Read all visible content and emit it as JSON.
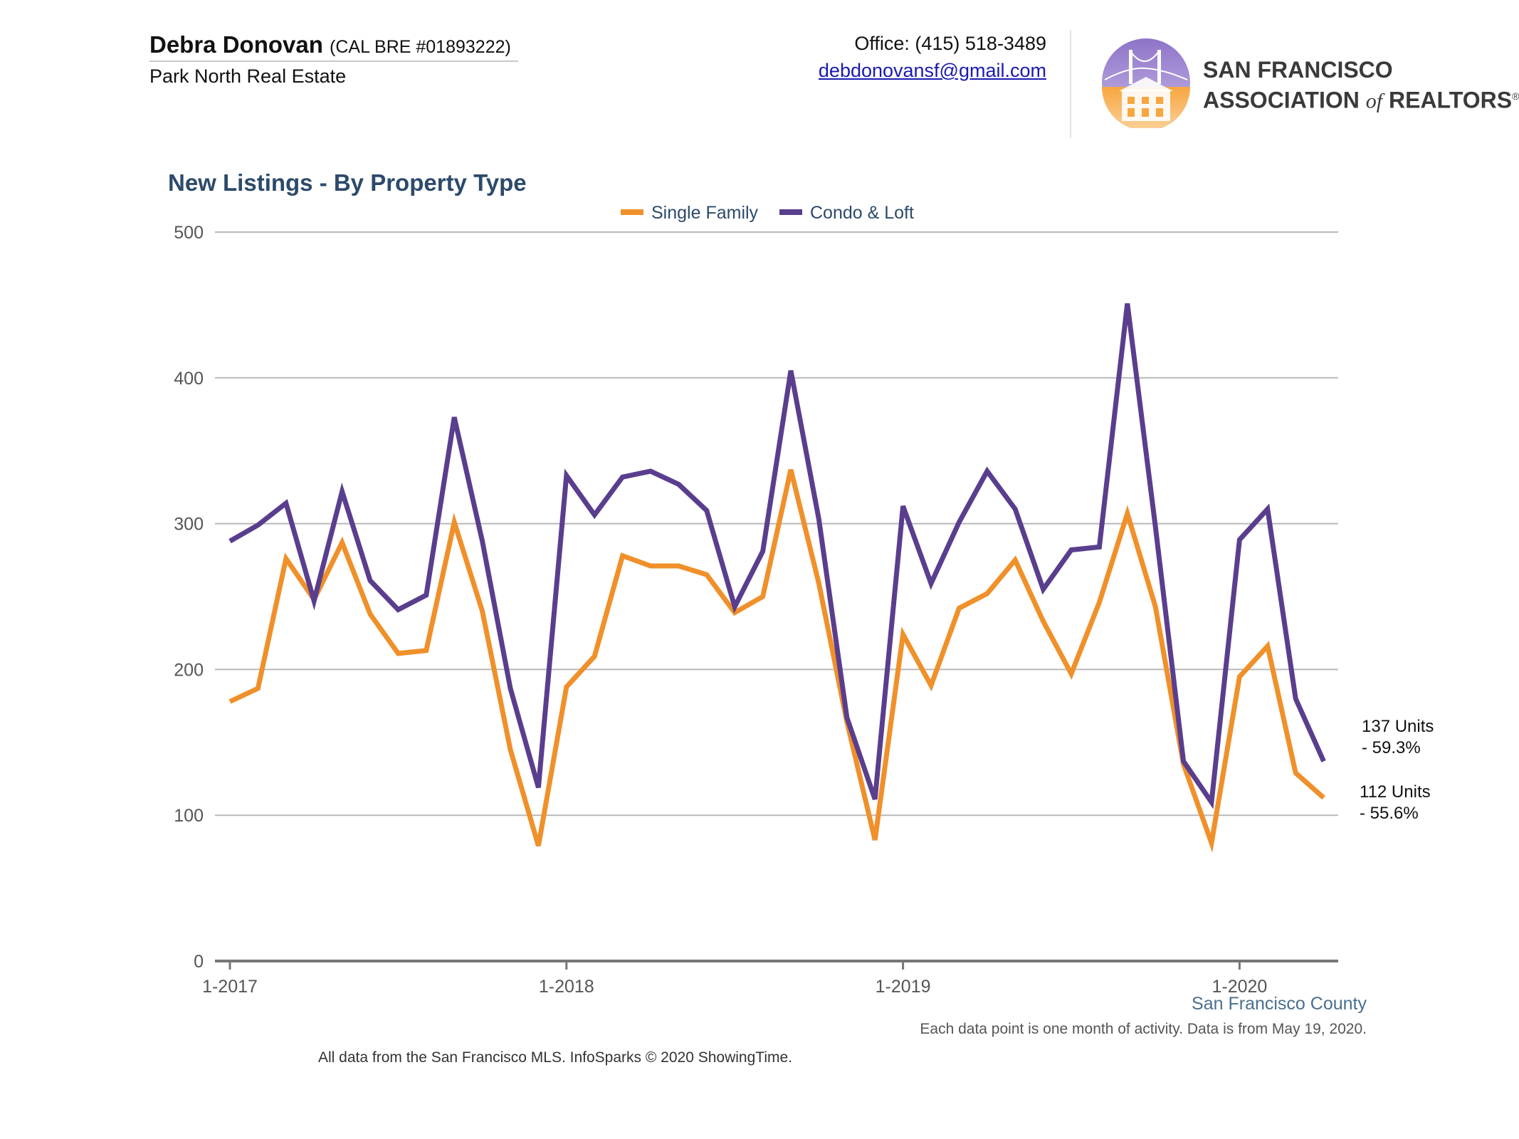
{
  "header": {
    "agent_name": "Debra Donovan",
    "agent_license": "(CAL BRE #01893222)",
    "agent_company": "Park North Real Estate",
    "office_phone": "Office: (415) 518-3489",
    "office_email": "debdonovansf@gmail.com",
    "sfar_line1": "SAN FRANCISCO",
    "sfar_line2_a": "ASSOCIATION ",
    "sfar_line2_of": "of",
    "sfar_line2_b": " REALTORS",
    "sfar_reg": "®"
  },
  "colors": {
    "single_family": "#f0902a",
    "condo_loft": "#5a3e8e",
    "title": "#2c4a6b",
    "grid": "#b9b9b9",
    "axis": "#777777"
  },
  "chart_data": {
    "type": "line",
    "title": "New Listings - By Property Type",
    "x_start": "1-2017",
    "x_ticks": [
      "1-2017",
      "1-2018",
      "1-2019",
      "1-2020"
    ],
    "y_ticks": [
      0,
      100,
      200,
      300,
      400,
      500
    ],
    "ylim": [
      0,
      500
    ],
    "grid": true,
    "legend_placement": "top-center",
    "series": [
      {
        "name": "Single Family",
        "color": "#f0902a",
        "values": [
          178,
          187,
          276,
          248,
          287,
          238,
          211,
          213,
          301,
          240,
          145,
          79,
          188,
          209,
          278,
          271,
          271,
          265,
          239,
          250,
          337,
          259,
          164,
          83,
          224,
          189,
          242,
          252,
          275,
          233,
          197,
          246,
          307,
          243,
          135,
          81,
          195,
          216,
          129,
          112
        ]
      },
      {
        "name": "Condo & Loft",
        "color": "#5a3e8e",
        "values": [
          288,
          299,
          314,
          247,
          322,
          261,
          241,
          251,
          373,
          288,
          187,
          119,
          333,
          306,
          332,
          336,
          327,
          309,
          243,
          281,
          405,
          303,
          167,
          111,
          312,
          259,
          301,
          336,
          310,
          255,
          282,
          284,
          451,
          298,
          137,
          109,
          289,
          310,
          180,
          137
        ]
      }
    ],
    "end_labels": [
      {
        "series": "Condo & Loft",
        "line1": "137 Units",
        "line2": "- 59.3%"
      },
      {
        "series": "Single Family",
        "line1": "112 Units",
        "line2": "- 55.6%"
      }
    ]
  },
  "footer": {
    "region": "San Francisco County",
    "footnote": "Each data point is one month of activity. Data is from May 19, 2020.",
    "source": "All data from the San Francisco MLS. InfoSparks © 2020 ShowingTime."
  }
}
